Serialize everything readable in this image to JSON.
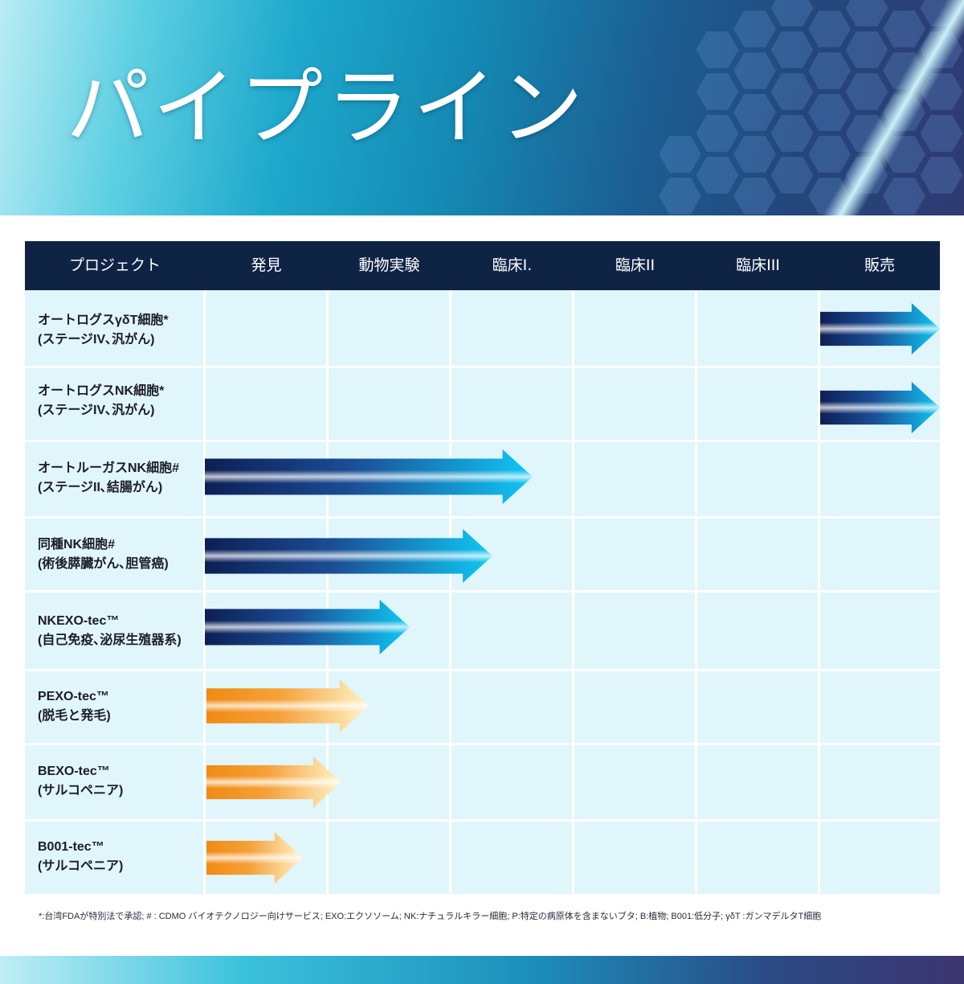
{
  "page": {
    "title": "パイプライン"
  },
  "table": {
    "columns": [
      "プロジェクト",
      "発見",
      "動物実験",
      "臨床I.",
      "臨床II",
      "臨床III",
      "販売"
    ],
    "rows": [
      {
        "name": "オートログスγδT細胞*",
        "sub": "(ステージIV､汎がん)",
        "color": "blue",
        "start": "販売",
        "end": "販売"
      },
      {
        "name": "オートログスNK細胞*",
        "sub": "(ステージIV､汎がん)",
        "color": "blue",
        "start": "販売",
        "end": "販売"
      },
      {
        "name": "オートルーガスNK細胞#",
        "sub": "(ステージII､結腸がん)",
        "color": "blue",
        "start": "発見",
        "end": "臨床I."
      },
      {
        "name": "同種NK細胞#",
        "sub": "(術後膵臓がん､胆管癌)",
        "color": "blue",
        "start": "発見",
        "end": "臨床I."
      },
      {
        "name": "NKEXO-tec™",
        "sub": "(自己免疫､泌尿生殖器系)",
        "color": "blue",
        "start": "発見",
        "end": "動物実験"
      },
      {
        "name": "PEXO-tec™",
        "sub": "(脱毛と発毛)",
        "color": "orange",
        "start": "発見",
        "end": "動物実験"
      },
      {
        "name": "BEXO-tec™",
        "sub": "(サルコペニア)",
        "color": "orange",
        "start": "発見",
        "end": "発見"
      },
      {
        "name": "B001-tec™",
        "sub": "(サルコペニア)",
        "color": "orange",
        "start": "発見",
        "end": "発見"
      }
    ]
  },
  "colors": {
    "header_bg": "#0f2445",
    "table_bg": "#e0f6fb",
    "arrow_blue_dark": "#0d1f55",
    "arrow_blue_light": "#10c8f5",
    "arrow_orange_dark": "#f18a12",
    "arrow_orange_light": "#fff3c8"
  },
  "footnote": "*:台湾FDAが特別法で承認; # : CDMO バイオテクノロジー向けサービス; EXO:エクソソーム; NK:ナチュラルキラー細胞; P:特定の病原体を含まないブタ; B:植物; B001:低分子; γδT :ガンマデルタT細胞"
}
